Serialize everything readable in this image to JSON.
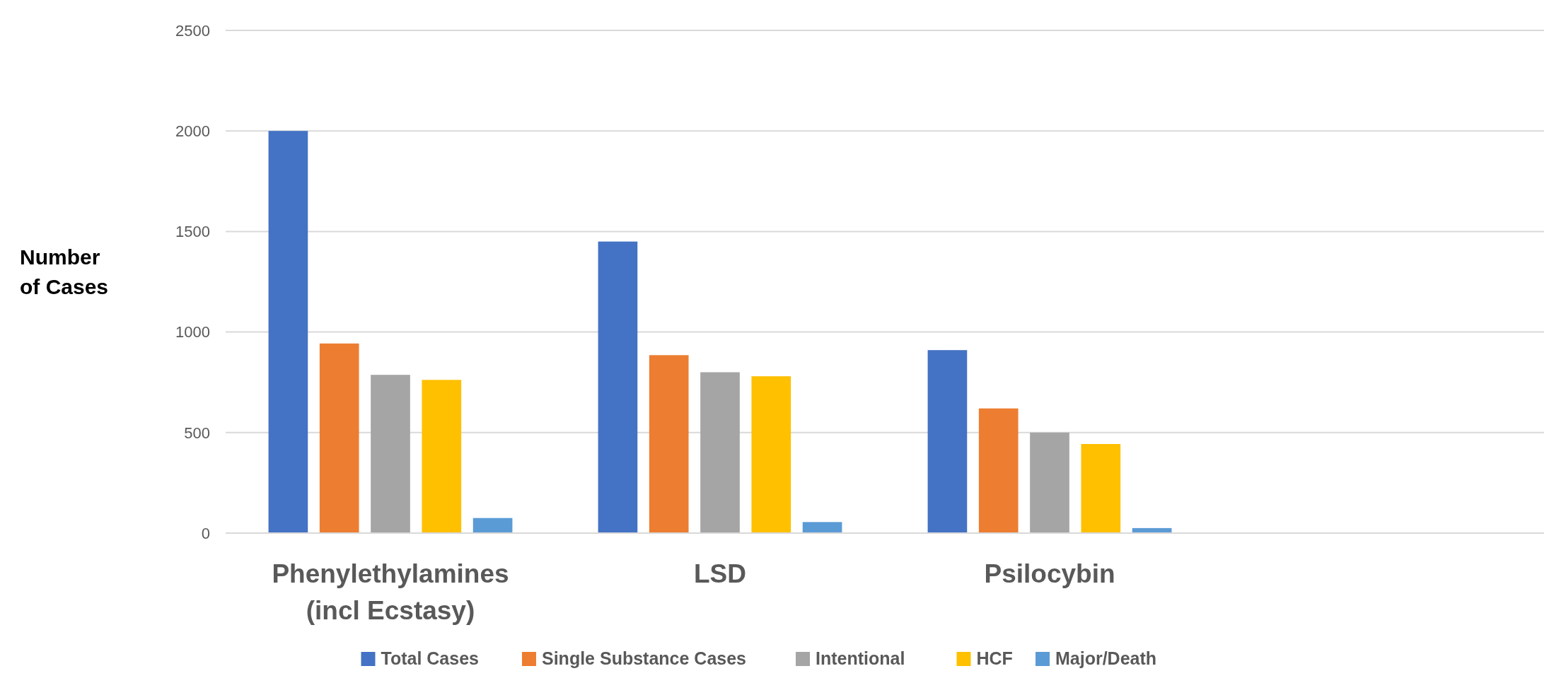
{
  "chart_data": {
    "type": "bar",
    "ylabel": "Number of Cases",
    "categories": [
      "Phenylethylamines (incl Ecstasy)",
      "LSD",
      "Psilocybin",
      null
    ],
    "series": [
      {
        "name": "Total Cases",
        "color": "#4472c4",
        "values": [
          2000,
          1450,
          910,
          null
        ]
      },
      {
        "name": "Single Substance Cases",
        "color": "#ed7d31",
        "values": [
          943,
          885,
          620,
          null
        ]
      },
      {
        "name": "Intentional",
        "color": "#a5a5a5",
        "values": [
          787,
          800,
          500,
          null
        ]
      },
      {
        "name": "HCF",
        "color": "#ffc000",
        "values": [
          762,
          780,
          443,
          null
        ]
      },
      {
        "name": "Major/Death",
        "color": "#5b9bd5",
        "values": [
          75,
          55,
          25,
          null
        ]
      }
    ],
    "ylim": [
      0,
      2500
    ],
    "yticks": [
      0,
      500,
      1000,
      1500,
      2000,
      2500
    ],
    "grid": "y",
    "legend": "bottom"
  }
}
